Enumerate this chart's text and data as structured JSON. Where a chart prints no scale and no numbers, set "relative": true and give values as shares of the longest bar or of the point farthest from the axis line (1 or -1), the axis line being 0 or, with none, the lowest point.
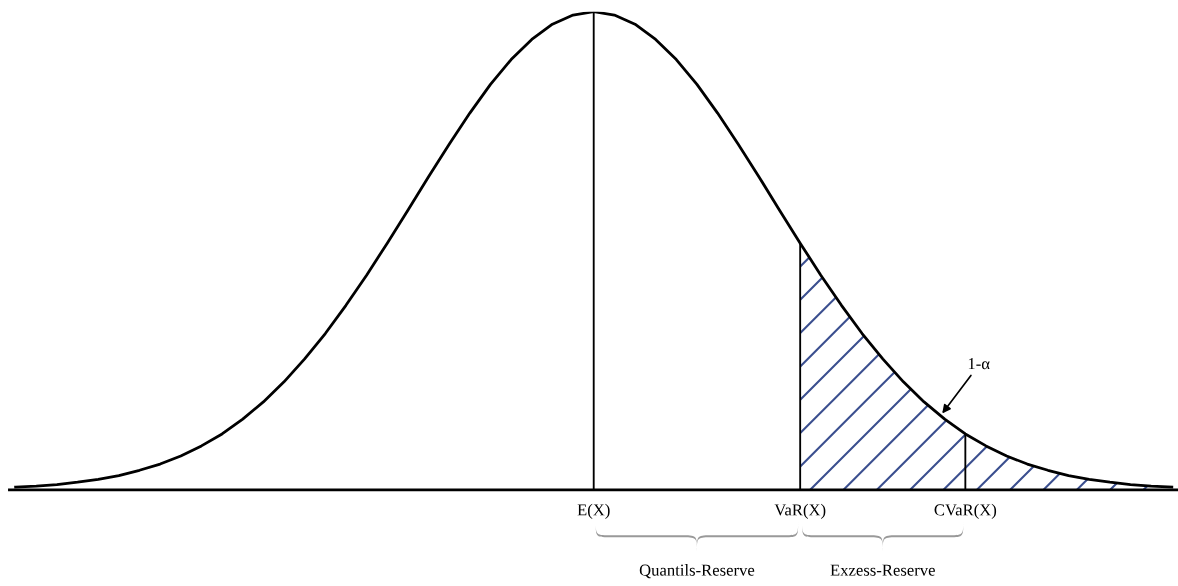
{
  "chart_data": {
    "type": "line",
    "relative": true,
    "legend": false,
    "grid": false,
    "categories": [
      null,
      null,
      null,
      null,
      null,
      null,
      null,
      null,
      null,
      null,
      null,
      null,
      null,
      null,
      null,
      null,
      null,
      null,
      null,
      null,
      null,
      null,
      null,
      null,
      null,
      null,
      null,
      null,
      "E(X)",
      null,
      null,
      null,
      null,
      null,
      null,
      null,
      null,
      null,
      "VaR(X)",
      null,
      null,
      null,
      null,
      null,
      null,
      null,
      "CVaR(X)",
      null,
      null,
      null,
      null,
      null,
      null,
      null,
      null,
      null,
      null
    ],
    "series": [
      {
        "color": "#000000",
        "values": [
          0.006,
          0.008,
          0.011,
          0.016,
          0.022,
          0.03,
          0.041,
          0.054,
          0.071,
          0.092,
          0.117,
          0.148,
          0.184,
          0.226,
          0.274,
          0.327,
          0.386,
          0.449,
          0.516,
          0.585,
          0.655,
          0.723,
          0.788,
          0.848,
          0.9,
          0.942,
          0.974,
          0.993,
          1,
          0.993,
          0.974,
          0.942,
          0.9,
          0.848,
          0.788,
          0.723,
          0.655,
          0.585,
          0.516,
          0.449,
          0.386,
          0.327,
          0.274,
          0.226,
          0.184,
          0.148,
          0.117,
          0.092,
          0.071,
          0.054,
          0.041,
          0.03,
          0.022,
          0.016,
          0.011,
          0.008,
          0.006
        ]
      },
      {
        "type": "area",
        "color": "#3b4f8f",
        "values": [
          null,
          null,
          null,
          null,
          null,
          null,
          null,
          null,
          null,
          null,
          null,
          null,
          null,
          null,
          null,
          null,
          null,
          null,
          null,
          null,
          null,
          null,
          null,
          null,
          null,
          null,
          null,
          null,
          null,
          null,
          null,
          null,
          null,
          null,
          null,
          null,
          null,
          null,
          0.516,
          0.449,
          0.386,
          0.327,
          0.274,
          0.226,
          0.184,
          0.148,
          0.117,
          0.092,
          0.071,
          0.054,
          0.041,
          0.03,
          0.022,
          0.016,
          0.011,
          0.008,
          0.006
        ]
      },
      {
        "type": "bar",
        "color": "#000000",
        "values": [
          null,
          null,
          null,
          null,
          null,
          null,
          null,
          null,
          null,
          null,
          null,
          null,
          null,
          null,
          null,
          null,
          null,
          null,
          null,
          null,
          null,
          null,
          null,
          null,
          null,
          null,
          null,
          null,
          1,
          null,
          null,
          null,
          null,
          null,
          null,
          null,
          null,
          null,
          0.516,
          null,
          null,
          null,
          null,
          null,
          null,
          null,
          0.117,
          null,
          null,
          null,
          null,
          null,
          null,
          null,
          null,
          null,
          null
        ]
      }
    ],
    "annotations": [
      "1-α",
      "Quantils-Reserve",
      "Exzess-Reserve"
    ]
  }
}
